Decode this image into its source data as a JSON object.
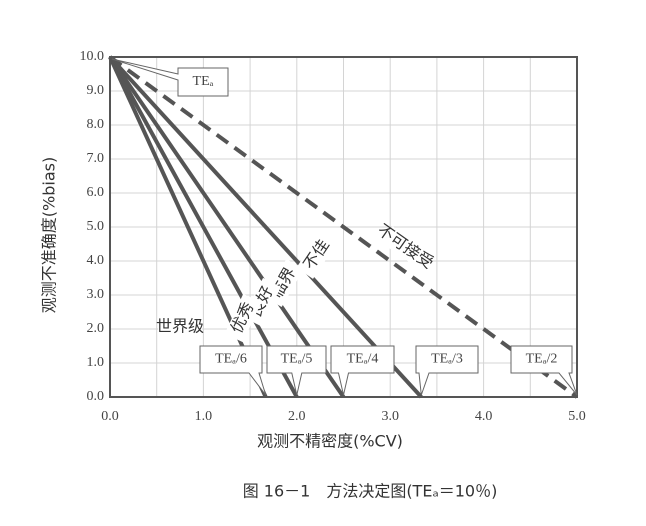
{
  "chart_data": {
    "type": "line",
    "x_label": "观测不精密度(%CV)",
    "y_label": "观测不准确度(%bias)",
    "caption": "图 16－1　方法决定图(TEₐ＝10％)",
    "xlim": [
      0,
      5
    ],
    "ylim": [
      0,
      10
    ],
    "xticks": [
      {
        "value": 0,
        "label": "0.0"
      },
      {
        "value": 1,
        "label": "1.0"
      },
      {
        "value": 2,
        "label": "2.0"
      },
      {
        "value": 3,
        "label": "3.0"
      },
      {
        "value": 4,
        "label": "4.0"
      },
      {
        "value": 5,
        "label": "5.0"
      }
    ],
    "yticks": [
      {
        "value": 0,
        "label": "0.0"
      },
      {
        "value": 1,
        "label": "1.0"
      },
      {
        "value": 2,
        "label": "2.0"
      },
      {
        "value": 3,
        "label": "3.0"
      },
      {
        "value": 4,
        "label": "4.0"
      },
      {
        "value": 5,
        "label": "5.0"
      },
      {
        "value": 6,
        "label": "6.0"
      },
      {
        "value": 7,
        "label": "7.0"
      },
      {
        "value": 8,
        "label": "8.0"
      },
      {
        "value": 9,
        "label": "9.0"
      },
      {
        "value": 10,
        "label": "10.0"
      }
    ],
    "x_minor_grid": [
      0.5,
      1.5,
      2.5,
      3.5,
      4.5
    ],
    "grid": true,
    "series": [
      {
        "callout": "TEₐ/6",
        "color": "#555555",
        "dash": false,
        "x": [
          0,
          1.667
        ],
        "values": [
          10,
          0
        ]
      },
      {
        "callout": "TEₐ/5",
        "color": "#555555",
        "dash": false,
        "x": [
          0,
          2
        ],
        "values": [
          10,
          0
        ]
      },
      {
        "callout": "TEₐ/4",
        "color": "#555555",
        "dash": false,
        "x": [
          0,
          2.5
        ],
        "values": [
          10,
          0
        ]
      },
      {
        "callout": "TEₐ/3",
        "color": "#555555",
        "dash": false,
        "x": [
          0,
          3.333
        ],
        "values": [
          10,
          0
        ]
      },
      {
        "callout": "TEₐ/2",
        "color": "#555555",
        "dash": true,
        "x": [
          0,
          5
        ],
        "values": [
          10,
          0
        ]
      }
    ],
    "origin_callout": "TEₐ",
    "zone_labels": [
      "不可接受",
      "不佳",
      "临界",
      "良好",
      "优秀",
      "世界级"
    ]
  }
}
